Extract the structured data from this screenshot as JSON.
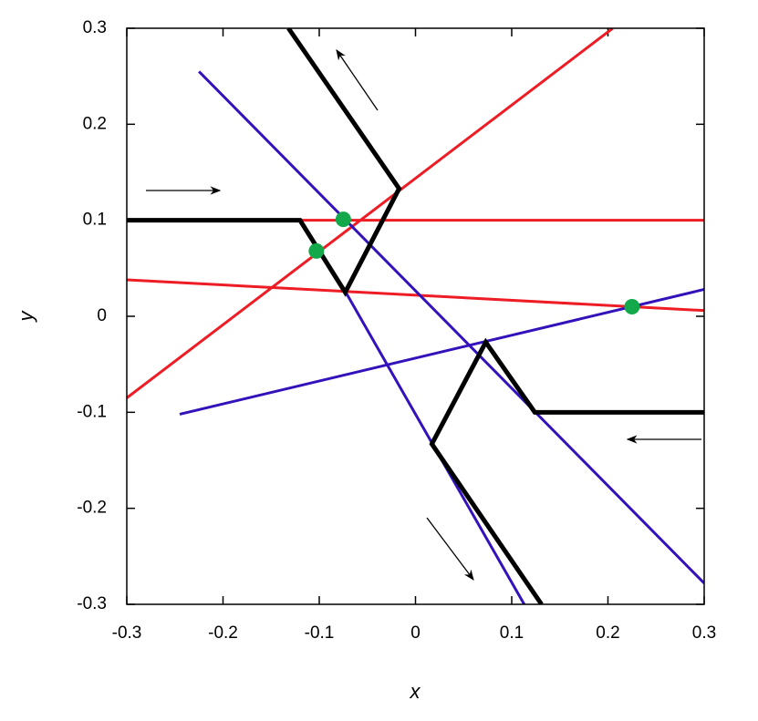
{
  "chart_data": {
    "type": "line",
    "x_label": "x",
    "y_label": "y",
    "xlim": [
      -0.3,
      0.3
    ],
    "ylim": [
      -0.3,
      0.3
    ],
    "xticks": [
      -0.3,
      -0.2,
      -0.1,
      0,
      0.1,
      0.2,
      0.3
    ],
    "yticks": [
      -0.3,
      -0.2,
      -0.1,
      0,
      0.1,
      0.2,
      0.3
    ],
    "series": [
      {
        "color": "#ee1c25",
        "linewidth": 3,
        "x": [
          -0.3,
          0.205
        ],
        "values": [
          -0.085,
          0.3
        ]
      },
      {
        "color": "#ee1c25",
        "linewidth": 3,
        "x": [
          -0.12,
          0.3
        ],
        "values": [
          0.1,
          0.1
        ]
      },
      {
        "color": "#ee1c25",
        "linewidth": 3,
        "x": [
          -0.3,
          0.3
        ],
        "values": [
          0.038,
          0.006
        ]
      },
      {
        "color": "#3311bb",
        "linewidth": 3,
        "x": [
          -0.225,
          0.3
        ],
        "values": [
          0.255,
          -0.278
        ]
      },
      {
        "color": "#3311bb",
        "linewidth": 3,
        "x": [
          -0.073,
          0.113
        ],
        "values": [
          0.026,
          -0.3
        ]
      },
      {
        "color": "#3311bb",
        "linewidth": 3,
        "x": [
          -0.245,
          0.3
        ],
        "values": [
          -0.102,
          0.028
        ]
      },
      {
        "color": "#000000",
        "linewidth": 5,
        "x": [
          -0.3,
          -0.12,
          -0.073,
          -0.017,
          -0.132
        ],
        "values": [
          0.1,
          0.1,
          0.025,
          0.133,
          0.3
        ]
      },
      {
        "color": "#000000",
        "linewidth": 5,
        "x": [
          0.3,
          0.124,
          0.073,
          0.017,
          0.131
        ],
        "values": [
          -0.1,
          -0.1,
          -0.027,
          -0.133,
          -0.3
        ]
      },
      {
        "color": "#13a84a",
        "marker": true,
        "x": [
          -0.075,
          -0.103,
          0.225
        ],
        "values": [
          0.101,
          0.068,
          0.01
        ]
      }
    ]
  }
}
